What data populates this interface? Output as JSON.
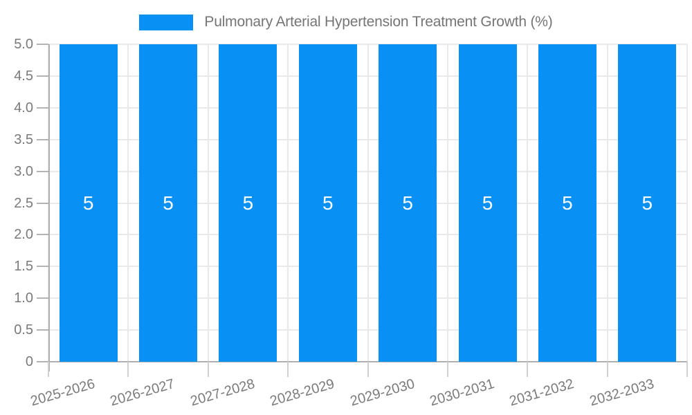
{
  "chart_data": {
    "type": "bar",
    "title": "Pulmonary Arterial Hypertension Treatment Growth (%)",
    "legend_position": "top",
    "categories": [
      "2025-2026",
      "2026-2027",
      "2027-2028",
      "2028-2029",
      "2029-2030",
      "2030-2031",
      "2031-2032",
      "2032-2033"
    ],
    "values": [
      5,
      5,
      5,
      5,
      5,
      5,
      5,
      5
    ],
    "bar_value_labels": [
      "5",
      "5",
      "5",
      "5",
      "5",
      "5",
      "5",
      "5"
    ],
    "xlabel": "",
    "ylabel": "",
    "ylim": [
      0,
      5
    ],
    "y_ticks": [
      "5.0",
      "4.5",
      "4.0",
      "3.5",
      "3.0",
      "2.5",
      "2.0",
      "1.5",
      "1.0",
      "0.5",
      "0"
    ],
    "grid": true,
    "colors": {
      "bar": "#0990f5",
      "value_label": "#ffffff",
      "axis_text": "#7a7a7a",
      "title_text": "#757575",
      "axis_line": "#b0b0b0",
      "grid_line": "#e9e9e9",
      "tick_line": "#d0d0d0"
    }
  }
}
